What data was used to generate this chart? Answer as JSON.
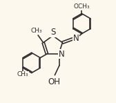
{
  "bg_color": "#fdf8ee",
  "line_color": "#2a2a2a",
  "line_width": 1.15,
  "font_size": 7.5,
  "figsize": [
    1.68,
    1.49
  ],
  "dpi": 100,
  "S_label": "S",
  "N_ring_label": "N",
  "N_exo_label": "N",
  "OH_label": "OH",
  "methoxy_label": "OCH₃",
  "CH3_label": "CH₃"
}
